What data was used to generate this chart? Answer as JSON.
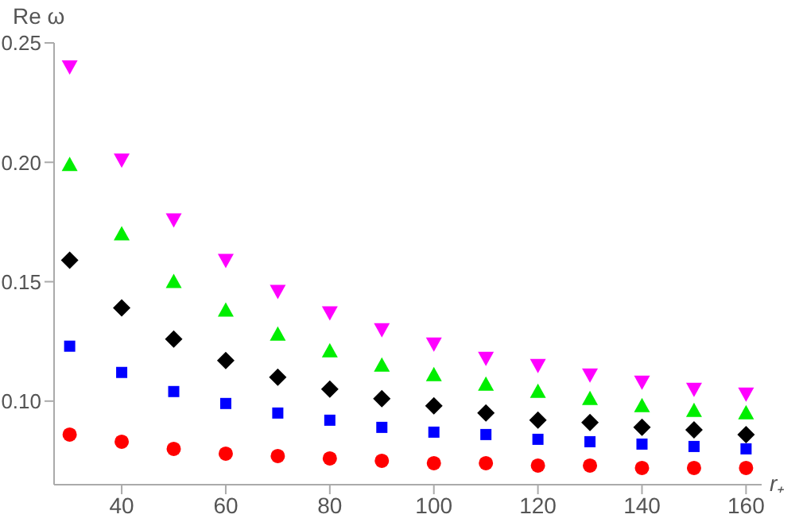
{
  "chart_data": {
    "type": "scatter",
    "xlabel": "r₊",
    "ylabel": "Re ω",
    "x": [
      30,
      40,
      50,
      60,
      70,
      80,
      90,
      100,
      110,
      120,
      130,
      140,
      150,
      160
    ],
    "xlim": [
      27,
      163
    ],
    "xticks": [
      40,
      60,
      80,
      100,
      120,
      140,
      160
    ],
    "ylim": [
      0.065,
      0.25
    ],
    "yticks": [
      {
        "value": 0.1,
        "label": "0.10"
      },
      {
        "value": 0.15,
        "label": "0.15"
      },
      {
        "value": 0.2,
        "label": "0.20"
      },
      {
        "value": 0.25,
        "label": "0.25"
      }
    ],
    "grid": false,
    "legend": false,
    "series": [
      {
        "color": "#ff00ff",
        "marker": "triangle-down",
        "values": [
          0.24,
          0.201,
          0.176,
          0.159,
          0.146,
          0.137,
          0.13,
          0.124,
          0.118,
          0.115,
          0.111,
          0.108,
          0.105,
          0.103
        ]
      },
      {
        "color": "#00ee00",
        "marker": "triangle",
        "values": [
          0.199,
          0.17,
          0.15,
          0.138,
          0.128,
          0.121,
          0.115,
          0.111,
          0.107,
          0.104,
          0.101,
          0.098,
          0.096,
          0.095
        ]
      },
      {
        "color": "#000000",
        "marker": "diamond",
        "values": [
          0.159,
          0.139,
          0.126,
          0.117,
          0.11,
          0.105,
          0.101,
          0.098,
          0.095,
          0.092,
          0.091,
          0.089,
          0.088,
          0.086
        ]
      },
      {
        "color": "#0000ff",
        "marker": "square",
        "values": [
          0.123,
          0.112,
          0.104,
          0.099,
          0.095,
          0.092,
          0.089,
          0.087,
          0.086,
          0.084,
          0.083,
          0.082,
          0.081,
          0.08
        ]
      },
      {
        "color": "#ff0000",
        "marker": "circle",
        "values": [
          0.086,
          0.083,
          0.08,
          0.078,
          0.077,
          0.076,
          0.075,
          0.074,
          0.074,
          0.073,
          0.073,
          0.072,
          0.072,
          0.072
        ]
      }
    ]
  }
}
